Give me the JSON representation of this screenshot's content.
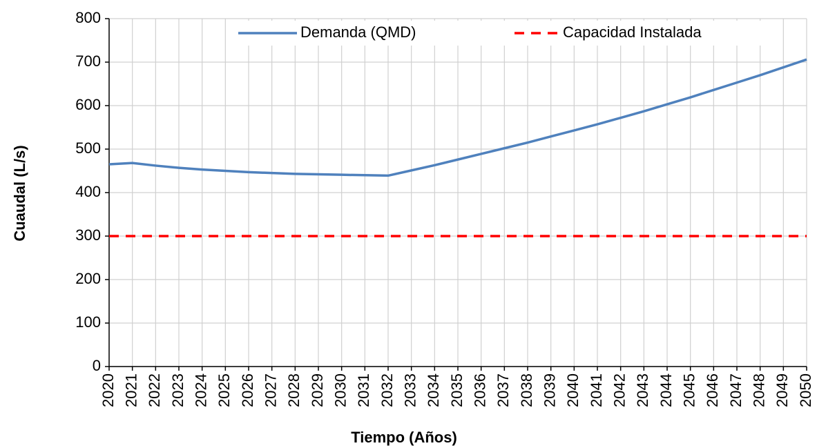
{
  "chart_data": {
    "type": "line",
    "xlabel": "Tiempo (Años)",
    "ylabel": "Cuaudal (L/s)",
    "x": [
      2020,
      2021,
      2022,
      2023,
      2024,
      2025,
      2026,
      2027,
      2028,
      2029,
      2030,
      2031,
      2032,
      2033,
      2034,
      2035,
      2036,
      2037,
      2038,
      2039,
      2040,
      2041,
      2042,
      2043,
      2044,
      2045,
      2046,
      2047,
      2048,
      2049,
      2050
    ],
    "series": [
      {
        "name": "Demanda (QMD)",
        "color": "#4f81bd",
        "style": "solid",
        "values": [
          465,
          468,
          462,
          457,
          453,
          450,
          447,
          445,
          443,
          442,
          441,
          440,
          439,
          451,
          463,
          476,
          489,
          502,
          515,
          529,
          543,
          557,
          572,
          587,
          603,
          619,
          636,
          653,
          670,
          688,
          706
        ]
      },
      {
        "name": "Capacidad Instalada",
        "color": "#ff0000",
        "style": "dashed",
        "values": [
          300,
          300,
          300,
          300,
          300,
          300,
          300,
          300,
          300,
          300,
          300,
          300,
          300,
          300,
          300,
          300,
          300,
          300,
          300,
          300,
          300,
          300,
          300,
          300,
          300,
          300,
          300,
          300,
          300,
          300,
          300
        ]
      }
    ],
    "xlim": [
      2020,
      2050
    ],
    "xticks": [
      2020,
      2021,
      2022,
      2023,
      2024,
      2025,
      2026,
      2027,
      2028,
      2029,
      2030,
      2031,
      2032,
      2033,
      2034,
      2035,
      2036,
      2037,
      2038,
      2039,
      2040,
      2041,
      2042,
      2043,
      2044,
      2045,
      2046,
      2047,
      2048,
      2049,
      2050
    ],
    "ylim": [
      0,
      800
    ],
    "yticks": [
      0,
      100,
      200,
      300,
      400,
      500,
      600,
      700,
      800
    ],
    "grid": true,
    "legend": "top"
  }
}
